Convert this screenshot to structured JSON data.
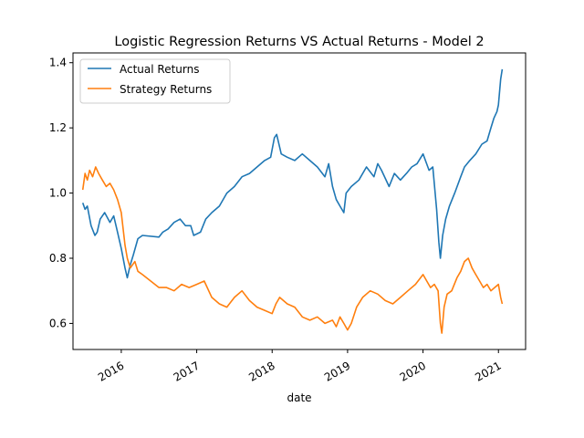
{
  "chart_data": {
    "type": "line",
    "title": "Logistic Regression Returns VS Actual Returns - Model 2",
    "xlabel": "date",
    "ylabel": "",
    "xlim": [
      2015.36,
      2021.36
    ],
    "ylim": [
      0.52,
      1.43
    ],
    "grid": false,
    "legend_position": "upper-left",
    "x_ticks": [
      {
        "value": 2016,
        "label": "2016"
      },
      {
        "value": 2017,
        "label": "2017"
      },
      {
        "value": 2018,
        "label": "2018"
      },
      {
        "value": 2019,
        "label": "2019"
      },
      {
        "value": 2020,
        "label": "2020"
      },
      {
        "value": 2021,
        "label": "2021"
      }
    ],
    "y_ticks": [
      {
        "value": 0.6,
        "label": "0.6"
      },
      {
        "value": 0.8,
        "label": "0.8"
      },
      {
        "value": 1.0,
        "label": "1.0"
      },
      {
        "value": 1.2,
        "label": "1.2"
      },
      {
        "value": 1.4,
        "label": "1.4"
      }
    ],
    "series": [
      {
        "name": "Actual Returns",
        "color": "#1f77b4",
        "x": [
          2015.49,
          2015.52,
          2015.55,
          2015.6,
          2015.65,
          2015.68,
          2015.72,
          2015.78,
          2015.85,
          2015.9,
          2015.95,
          2016.0,
          2016.05,
          2016.08,
          2016.12,
          2016.16,
          2016.22,
          2016.28,
          2016.5,
          2016.55,
          2016.62,
          2016.7,
          2016.78,
          2016.85,
          2016.92,
          2016.96,
          2017.05,
          2017.12,
          2017.2,
          2017.3,
          2017.4,
          2017.5,
          2017.6,
          2017.7,
          2017.8,
          2017.9,
          2017.98,
          2018.03,
          2018.06,
          2018.12,
          2018.2,
          2018.3,
          2018.4,
          2018.5,
          2018.6,
          2018.7,
          2018.75,
          2018.8,
          2018.85,
          2018.9,
          2018.95,
          2018.98,
          2019.05,
          2019.15,
          2019.25,
          2019.35,
          2019.4,
          2019.45,
          2019.55,
          2019.62,
          2019.7,
          2019.78,
          2019.85,
          2019.92,
          2020.0,
          2020.08,
          2020.13,
          2020.18,
          2020.21,
          2020.23,
          2020.26,
          2020.3,
          2020.35,
          2020.42,
          2020.5,
          2020.55,
          2020.62,
          2020.7,
          2020.78,
          2020.85,
          2020.9,
          2020.94,
          2020.98,
          2021.0,
          2021.03,
          2021.05
        ],
        "y": [
          0.97,
          0.95,
          0.96,
          0.9,
          0.87,
          0.88,
          0.92,
          0.94,
          0.91,
          0.93,
          0.88,
          0.83,
          0.77,
          0.74,
          0.78,
          0.81,
          0.86,
          0.87,
          0.865,
          0.88,
          0.89,
          0.91,
          0.92,
          0.9,
          0.9,
          0.87,
          0.88,
          0.92,
          0.94,
          0.96,
          1.0,
          1.02,
          1.05,
          1.06,
          1.08,
          1.1,
          1.11,
          1.17,
          1.18,
          1.12,
          1.11,
          1.1,
          1.12,
          1.1,
          1.08,
          1.05,
          1.09,
          1.02,
          0.98,
          0.96,
          0.94,
          1.0,
          1.02,
          1.04,
          1.08,
          1.05,
          1.09,
          1.07,
          1.02,
          1.06,
          1.04,
          1.06,
          1.08,
          1.09,
          1.12,
          1.07,
          1.08,
          0.95,
          0.85,
          0.8,
          0.87,
          0.92,
          0.96,
          1.0,
          1.05,
          1.08,
          1.1,
          1.12,
          1.15,
          1.16,
          1.2,
          1.23,
          1.25,
          1.27,
          1.35,
          1.38
        ]
      },
      {
        "name": "Strategy Returns",
        "color": "#ff7f0e",
        "x": [
          2015.49,
          2015.52,
          2015.55,
          2015.58,
          2015.62,
          2015.66,
          2015.7,
          2015.75,
          2015.8,
          2015.85,
          2015.9,
          2015.95,
          2016.0,
          2016.05,
          2016.08,
          2016.12,
          2016.18,
          2016.22,
          2016.28,
          2016.5,
          2016.6,
          2016.7,
          2016.8,
          2016.9,
          2017.0,
          2017.1,
          2017.2,
          2017.3,
          2017.4,
          2017.5,
          2017.6,
          2017.7,
          2017.8,
          2017.9,
          2018.0,
          2018.05,
          2018.1,
          2018.2,
          2018.3,
          2018.4,
          2018.5,
          2018.6,
          2018.7,
          2018.8,
          2018.85,
          2018.9,
          2018.95,
          2019.0,
          2019.05,
          2019.12,
          2019.2,
          2019.3,
          2019.4,
          2019.5,
          2019.6,
          2019.7,
          2019.8,
          2019.9,
          2020.0,
          2020.05,
          2020.1,
          2020.15,
          2020.2,
          2020.23,
          2020.25,
          2020.28,
          2020.32,
          2020.38,
          2020.45,
          2020.5,
          2020.55,
          2020.6,
          2020.65,
          2020.7,
          2020.75,
          2020.8,
          2020.85,
          2020.9,
          2020.95,
          2021.0,
          2021.03,
          2021.05
        ],
        "y": [
          1.01,
          1.06,
          1.04,
          1.07,
          1.05,
          1.08,
          1.06,
          1.04,
          1.02,
          1.03,
          1.01,
          0.98,
          0.94,
          0.84,
          0.8,
          0.77,
          0.79,
          0.76,
          0.75,
          0.71,
          0.71,
          0.7,
          0.72,
          0.71,
          0.72,
          0.73,
          0.68,
          0.66,
          0.65,
          0.68,
          0.7,
          0.67,
          0.65,
          0.64,
          0.63,
          0.66,
          0.68,
          0.66,
          0.65,
          0.62,
          0.61,
          0.62,
          0.6,
          0.61,
          0.59,
          0.62,
          0.6,
          0.58,
          0.6,
          0.65,
          0.68,
          0.7,
          0.69,
          0.67,
          0.66,
          0.68,
          0.7,
          0.72,
          0.75,
          0.73,
          0.71,
          0.72,
          0.7,
          0.6,
          0.57,
          0.65,
          0.69,
          0.7,
          0.74,
          0.76,
          0.79,
          0.8,
          0.77,
          0.75,
          0.73,
          0.71,
          0.72,
          0.7,
          0.71,
          0.72,
          0.68,
          0.66
        ]
      }
    ]
  }
}
